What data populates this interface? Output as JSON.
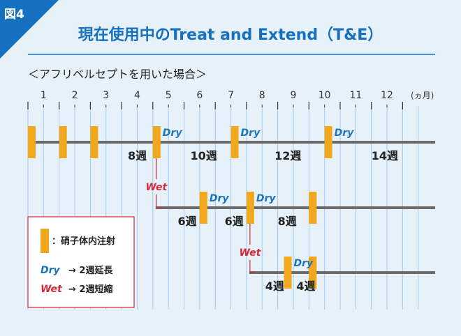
{
  "figure_tag": "図4",
  "title": "現在使用中のTreat and Extend（T&E）",
  "subtitle": "＜アフリベルセプトを用いた場合＞",
  "axis": {
    "months": [
      "1",
      "2",
      "3",
      "4",
      "5",
      "6",
      "7",
      "8",
      "9",
      "10",
      "11",
      "12"
    ],
    "unit": "(ヵ月)"
  },
  "rows": [
    {
      "injections": [
        0,
        1,
        2,
        4,
        6.5,
        9.5
      ],
      "dry_labels": [
        4,
        6.5,
        9.5
      ],
      "intervals": [
        {
          "label": "8週",
          "at": 3.2
        },
        {
          "label": "10週",
          "at": 5.2
        },
        {
          "label": "12週",
          "at": 7.9
        },
        {
          "label": "14週",
          "at": 11.0
        }
      ]
    },
    {
      "start": 4,
      "injections": [
        5.5,
        7,
        9
      ],
      "dry_labels": [
        5.5,
        7
      ],
      "intervals": [
        {
          "label": "6週",
          "at": 4.8
        },
        {
          "label": "6週",
          "at": 6.3
        },
        {
          "label": "8週",
          "at": 8.0
        }
      ]
    },
    {
      "start": 7,
      "injections": [
        8.2,
        9
      ],
      "dry_labels": [
        8.2
      ],
      "intervals": [
        {
          "label": "4週",
          "at": 7.6
        },
        {
          "label": "4週",
          "at": 8.6
        }
      ]
    }
  ],
  "branch_labels": [
    {
      "label": "Wet",
      "at": 4
    },
    {
      "label": "Wet",
      "at": 7
    }
  ],
  "dry_text": "Dry",
  "legend": {
    "injection": "：硝子体内注射",
    "dry_label": "Dry",
    "dry_desc": "→ 2週延長",
    "wet_label": "Wet",
    "wet_desc": "→ 2週短縮"
  },
  "colors": {
    "accent_blue": "#1570c0",
    "injection": "#f2a81d",
    "dry": "#1a75bb",
    "wet": "#d62839",
    "row_line": "#6b6b6b",
    "grid": "#a9cbe6",
    "background": "#e6f1fa"
  }
}
